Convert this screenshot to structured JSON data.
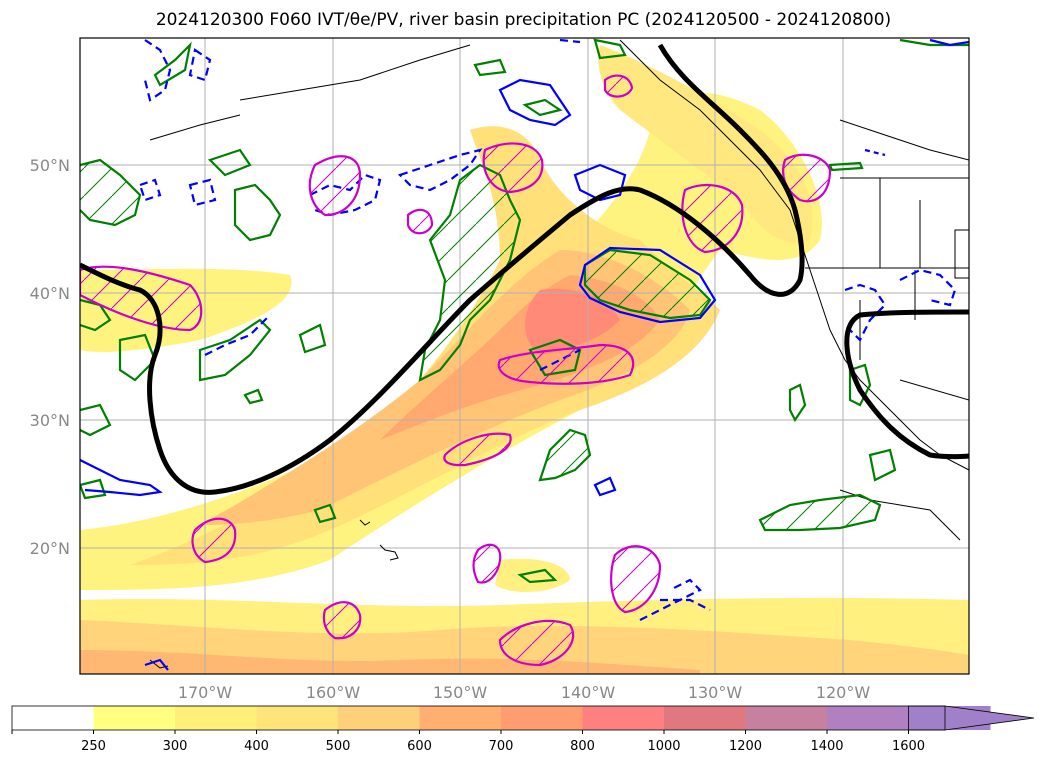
{
  "title": "2024120300 F060 IVT/θe/PV, river basin precipitation PC (2024120500 - 2024120800)",
  "map": {
    "lat_labels": [
      "50°N",
      "40°N",
      "30°N",
      "20°N"
    ],
    "lon_labels": [
      "170°W",
      "160°W",
      "150°W",
      "140°W",
      "130°W",
      "120°W"
    ],
    "contour_colors": {
      "theta_e": "#000000",
      "pv_positive": "#008000",
      "pv_negative": "#0000ff",
      "precip_pc": "#cc00cc"
    }
  },
  "colorbar": {
    "ticks": [
      "250",
      "300",
      "400",
      "500",
      "600",
      "700",
      "800",
      "1000",
      "1200",
      "1400",
      "1600"
    ],
    "colors": [
      "#ffffff",
      "#ffff80",
      "#fff07a",
      "#ffe47a",
      "#ffd07a",
      "#ffb070",
      "#ff9c70",
      "#ff8080",
      "#e07880",
      "#c880a0",
      "#b080c0",
      "#a080c8"
    ]
  }
}
